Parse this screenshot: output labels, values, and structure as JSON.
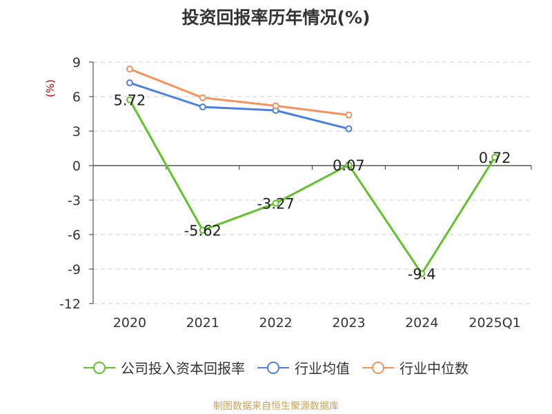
{
  "chart_data": {
    "type": "line",
    "title": "投资回报率历年情况(%)",
    "ylabel": "(%)",
    "categories": [
      "2020",
      "2021",
      "2022",
      "2023",
      "2024",
      "2025Q1"
    ],
    "yticks": [
      9,
      6,
      3,
      0,
      -3,
      -6,
      -9,
      -12
    ],
    "ylim": [
      -12,
      9
    ],
    "grid": true,
    "legend_position": "bottom",
    "series": [
      {
        "name": "公司投入资本回报率",
        "color": "#5fc22b",
        "values": [
          5.72,
          -5.62,
          -3.27,
          0.07,
          -9.4,
          0.72
        ],
        "labels": [
          "5.72",
          "-5.62",
          "-3.27",
          "0.07",
          "-9.4",
          "0.72"
        ]
      },
      {
        "name": "行业均值",
        "color": "#4a7fe0",
        "values": [
          7.2,
          5.1,
          4.8,
          3.2,
          null,
          null
        ]
      },
      {
        "name": "行业中位数",
        "color": "#f5925b",
        "values": [
          8.4,
          5.9,
          5.2,
          4.4,
          null,
          null
        ]
      }
    ]
  },
  "source": "制图数据来自恒生聚源数据库"
}
